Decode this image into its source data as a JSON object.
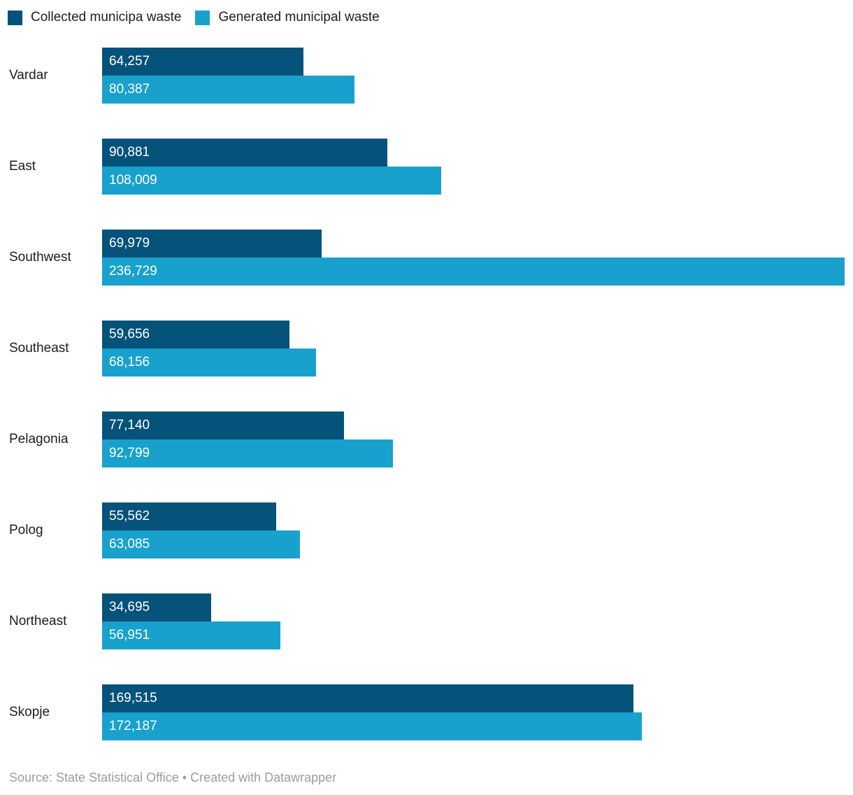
{
  "colors": {
    "collected": "#05527a",
    "generated": "#18a1cd",
    "label_text": "#1d1d1d",
    "bar_value_text": "#ffffff",
    "footer_text": "#9d9d9d",
    "background": "#ffffff"
  },
  "chart_data": {
    "type": "bar",
    "orientation": "horizontal",
    "grid": false,
    "legend_position": "top-left",
    "xmax": 236729,
    "categories": [
      "Vardar",
      "East",
      "Southwest",
      "Southeast",
      "Pelagonia",
      "Polog",
      "Northeast",
      "Skopje"
    ],
    "series": [
      {
        "name": "Collected municipa waste",
        "color": "#05527a",
        "values": [
          64257,
          90881,
          69979,
          59656,
          77140,
          55562,
          34695,
          169515
        ],
        "labels": [
          "64,257",
          "90,881",
          "69,979",
          "59,656",
          "77,140",
          "55,562",
          "34,695",
          "169,515"
        ]
      },
      {
        "name": "Generated municipal waste",
        "color": "#18a1cd",
        "values": [
          80387,
          108009,
          236729,
          68156,
          92799,
          63085,
          56951,
          172187
        ],
        "labels": [
          "80,387",
          "108,009",
          "236,729",
          "68,156",
          "92,799",
          "63,085",
          "56,951",
          "172,187"
        ]
      }
    ]
  },
  "footer": {
    "text": "Source: State Statistical Office • Created with Datawrapper"
  }
}
